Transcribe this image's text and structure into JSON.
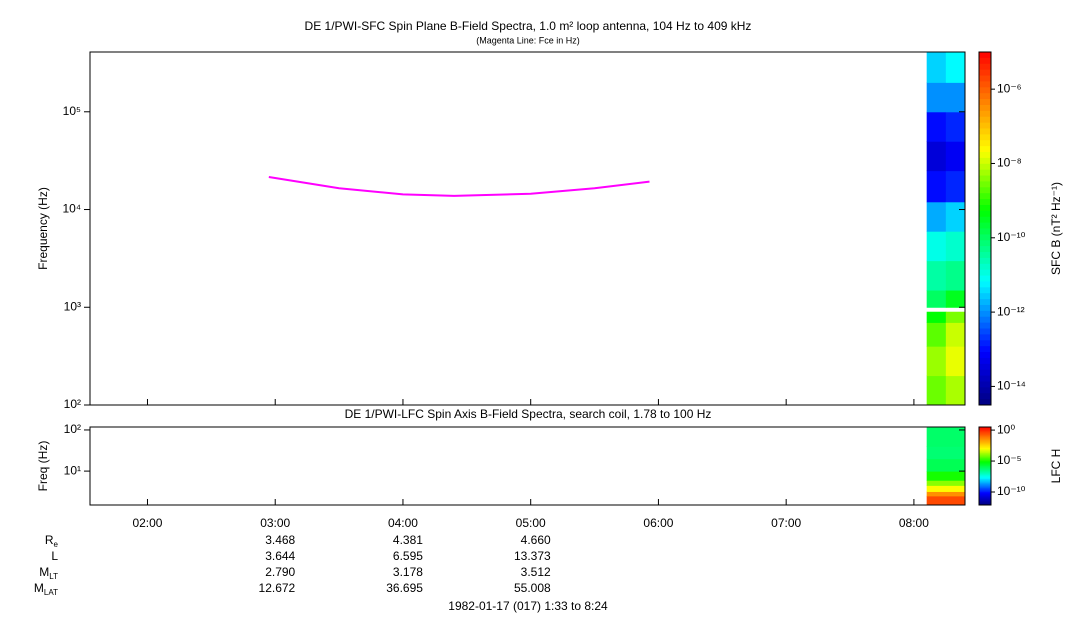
{
  "chart_data": [
    {
      "type": "spectrogram",
      "title": "DE 1/PWI-SFC  Spin Plane B-Field Spectra, 1.0 m² loop antenna, 104 Hz to 409 kHz",
      "subtitle": "(Magenta Line: Fce in Hz)",
      "ylabel": "Frequency (Hz)",
      "log_y": true,
      "xlim": [
        1.55,
        8.4
      ],
      "ylim": [
        100,
        409000
      ],
      "yticks": [
        {
          "value": 100,
          "label": "10²"
        },
        {
          "value": 1000,
          "label": "10³"
        },
        {
          "value": 10000,
          "label": "10⁴"
        },
        {
          "value": 100000,
          "label": "10⁵"
        }
      ],
      "line": {
        "color": "#ff00ff",
        "x": [
          2.95,
          3.5,
          4.0,
          4.4,
          5.0,
          5.5,
          5.93
        ],
        "values": [
          21500,
          16500,
          14300,
          13800,
          14500,
          16500,
          19300
        ]
      },
      "spectrogram": {
        "x_edges": [
          8.1,
          8.25,
          8.4
        ],
        "freq_edges": [
          100,
          200,
          400,
          700,
          900,
          1000,
          1500,
          3000,
          6000,
          12000,
          25000,
          50000,
          100000,
          200000,
          409000
        ],
        "values": [
          [
            -8.6,
            -8.3,
            -8.7,
            -9.3,
            null,
            -10,
            -10.5,
            -11,
            -11.8,
            -13,
            -13.5,
            -13,
            -12,
            -11.5
          ],
          [
            -8.2,
            -7.8,
            -8,
            -8.5,
            null,
            -9.5,
            -10.3,
            -10.8,
            -11.5,
            -12.8,
            -13.2,
            -12.8,
            -12,
            -11.2
          ]
        ]
      },
      "colorbar": {
        "label": "SFC B (nT² Hz⁻¹)",
        "lim": [
          -14.5,
          -5
        ],
        "ticks": [
          {
            "value": -14,
            "label": "10⁻¹⁴"
          },
          {
            "value": -12,
            "label": "10⁻¹²"
          },
          {
            "value": -10,
            "label": "10⁻¹⁰"
          },
          {
            "value": -8,
            "label": "10⁻⁸"
          },
          {
            "value": -6,
            "label": "10⁻⁶"
          }
        ]
      }
    },
    {
      "type": "spectrogram",
      "title": "DE 1/PWI-LFC  Spin Axis B-Field Spectra, search coil, 1.78 to 100 Hz",
      "ylabel": "Freq (Hz)",
      "log_y": true,
      "xlim": [
        1.55,
        8.4
      ],
      "ylim": [
        1.5,
        118
      ],
      "yticks": [
        {
          "value": 10,
          "label": "10¹"
        },
        {
          "value": 100,
          "label": "10²"
        }
      ],
      "xticks": [
        {
          "value": 2,
          "label": "02:00"
        },
        {
          "value": 3,
          "label": "03:00"
        },
        {
          "value": 4,
          "label": "04:00"
        },
        {
          "value": 5,
          "label": "05:00"
        },
        {
          "value": 6,
          "label": "06:00"
        },
        {
          "value": 7,
          "label": "07:00"
        },
        {
          "value": 8,
          "label": "08:00"
        }
      ],
      "spectrogram": {
        "x_edges": [
          8.1,
          8.4
        ],
        "freq_edges": [
          1.5,
          2.5,
          3.2,
          4.5,
          6,
          10,
          20,
          40,
          118
        ],
        "values": [
          [
            -0.5,
            -1.5,
            -3,
            -4,
            -5,
            -6,
            -6.3,
            -6.2
          ]
        ]
      },
      "colorbar": {
        "label": "LFC H",
        "lim": [
          -12.1,
          0.5
        ],
        "ticks": [
          {
            "value": -10,
            "label": "10⁻¹⁰"
          },
          {
            "value": -5,
            "label": "10⁻⁵"
          },
          {
            "value": 0,
            "label": "10⁰"
          }
        ]
      }
    }
  ],
  "ephemeris": {
    "x": [
      3,
      4,
      5
    ],
    "rows": [
      {
        "label": "R",
        "sub": "e",
        "values": [
          "3.468",
          "4.381",
          "4.660"
        ]
      },
      {
        "label": "L",
        "values": [
          "3.644",
          "6.595",
          "13.373"
        ]
      },
      {
        "label": "M",
        "sub": "LT",
        "values": [
          "2.790",
          "3.178",
          "3.512"
        ]
      },
      {
        "label": "M",
        "sub": "LAT",
        "values": [
          "12.672",
          "36.695",
          "55.008"
        ]
      }
    ]
  },
  "footer": "1982-01-17 (017) 1:33 to 8:24"
}
